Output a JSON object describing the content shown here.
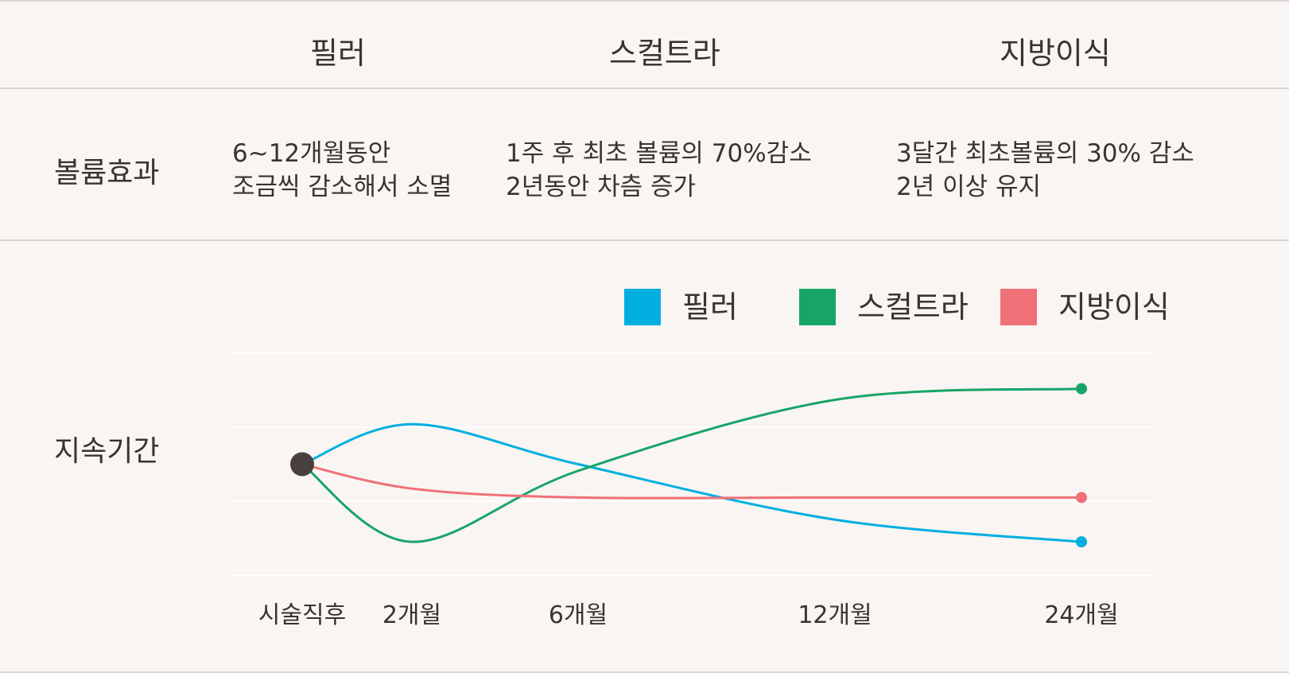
{
  "table": {
    "columns": [
      "필러",
      "스컬트라",
      "지방이식"
    ],
    "rows": [
      {
        "label": "볼륨효과",
        "cells": [
          [
            "6~12개월동안",
            "조금씩 감소해서 소멸"
          ],
          [
            "1주 후 최초 볼륨의 70%감소",
            "2년동안 차츰 증가"
          ],
          [
            "3달간 최초볼륨의 30% 감소",
            "2년 이상 유지"
          ]
        ]
      },
      {
        "label": "지속기간"
      }
    ]
  },
  "chart_data": {
    "type": "line",
    "title": "",
    "xlabel": "",
    "ylabel": "",
    "x": [
      "시술직후",
      "2개월",
      "6개월",
      "12개월",
      "24개월"
    ],
    "grid": true,
    "legend": "top-right",
    "series": [
      {
        "name": "필러",
        "color": "#00afe0",
        "values": [
          50,
          68,
          50,
          25,
          15
        ]
      },
      {
        "name": "스컬트라",
        "color": "#17a566",
        "values": [
          50,
          15,
          47,
          79,
          84
        ]
      },
      {
        "name": "지방이식",
        "color": "#f07078",
        "values": [
          50,
          39,
          35,
          35,
          35
        ]
      }
    ],
    "start_marker_color": "#4a3f3f"
  }
}
